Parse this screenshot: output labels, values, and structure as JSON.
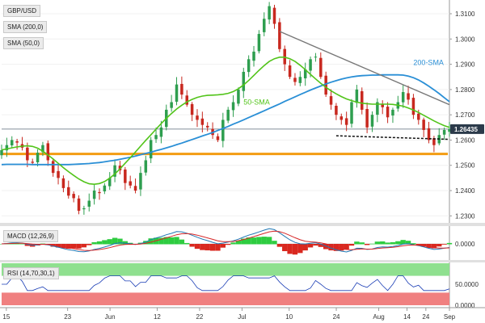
{
  "chart_data": [
    {
      "type": "candlestick",
      "title": "GBP/USD",
      "indicators": [
        "SMA (200,0)",
        "SMA (50,0)"
      ],
      "y_ticks": [
        "1.3100",
        "1.3000",
        "1.2900",
        "1.2800",
        "1.2700",
        "1.2600",
        "1.2500",
        "1.2400",
        "1.2300"
      ],
      "ylim": [
        1.2285,
        1.3148
      ],
      "last_price": "1.26435",
      "annotations": {
        "sma50": "50-SMA",
        "sma200": "200-SMA"
      },
      "closes": [
        1.256,
        1.258,
        1.26,
        1.259,
        1.257,
        1.252,
        1.251,
        1.255,
        1.258,
        1.252,
        1.247,
        1.245,
        1.241,
        1.238,
        1.237,
        1.232,
        1.233,
        1.236,
        1.24,
        1.239,
        1.242,
        1.245,
        1.25,
        1.248,
        1.243,
        1.242,
        1.24,
        1.247,
        1.252,
        1.26,
        1.262,
        1.265,
        1.272,
        1.275,
        1.282,
        1.278,
        1.274,
        1.27,
        1.268,
        1.266,
        1.265,
        1.262,
        1.26,
        1.268,
        1.272,
        1.275,
        1.28,
        1.287,
        1.292,
        1.295,
        1.302,
        1.308,
        1.313,
        1.306,
        1.296,
        1.29,
        1.285,
        1.283,
        1.285,
        1.288,
        1.292,
        1.293,
        1.285,
        1.278,
        1.274,
        1.27,
        1.268,
        1.266,
        1.275,
        1.28,
        1.272,
        1.265,
        1.27,
        1.275,
        1.273,
        1.269,
        1.272,
        1.275,
        1.279,
        1.276,
        1.27,
        1.268,
        1.264,
        1.26,
        1.258,
        1.262,
        1.264,
        1.2644
      ],
      "sma50": [
        1.2561,
        1.2565,
        1.2569,
        1.2573,
        1.2576,
        1.2577,
        1.2575,
        1.2568,
        1.2556,
        1.2541,
        1.2525,
        1.2508,
        1.2491,
        1.2475,
        1.246,
        1.2446,
        1.2435,
        1.2427,
        1.2425,
        1.2428,
        1.2436,
        1.2449,
        1.2466,
        1.2486,
        1.2508,
        1.253,
        1.2553,
        1.2576,
        1.2599,
        1.2621,
        1.2643,
        1.2665,
        1.2686,
        1.2705,
        1.2723,
        1.2738,
        1.2751,
        1.2761,
        1.2769,
        1.2774,
        1.2777,
        1.2778,
        1.2779,
        1.2781,
        1.2785,
        1.2792,
        1.2803,
        1.2818,
        1.2836,
        1.2856,
        1.2876,
        1.2895,
        1.2911,
        1.2922,
        1.2928,
        1.2928,
        1.2922,
        1.2911,
        1.2896,
        1.2879,
        1.286,
        1.2842,
        1.2825,
        1.2809,
        1.2795,
        1.2783,
        1.2772,
        1.2763,
        1.2756,
        1.275,
        1.2746,
        1.2744,
        1.2742,
        1.2742,
        1.2742,
        1.2742,
        1.2741,
        1.2738,
        1.2734,
        1.2727,
        1.2719,
        1.2709,
        1.2698,
        1.2687,
        1.2676,
        1.2666,
        1.2657,
        1.265
      ],
      "sma200": [
        1.2503,
        1.2504,
        1.2504,
        1.2504,
        1.2504,
        1.2504,
        1.2503,
        1.2503,
        1.2503,
        1.2503,
        1.2503,
        1.2503,
        1.2503,
        1.2503,
        1.2504,
        1.2505,
        1.2506,
        1.2507,
        1.2509,
        1.2511,
        1.2514,
        1.2517,
        1.252,
        1.2524,
        1.2528,
        1.2532,
        1.2537,
        1.2542,
        1.2547,
        1.2552,
        1.2558,
        1.2563,
        1.2569,
        1.2575,
        1.2582,
        1.2588,
        1.2595,
        1.2602,
        1.2609,
        1.2616,
        1.2623,
        1.263,
        1.2638,
        1.2646,
        1.2654,
        1.2663,
        1.2671,
        1.268,
        1.2689,
        1.2698,
        1.2707,
        1.2716,
        1.2725,
        1.2734,
        1.2743,
        1.2753,
        1.2762,
        1.2771,
        1.278,
        1.2789,
        1.2798,
        1.2806,
        1.2814,
        1.2822,
        1.2829,
        1.2835,
        1.2841,
        1.2846,
        1.285,
        1.2853,
        1.2855,
        1.2856,
        1.2857,
        1.2857,
        1.2858,
        1.2858,
        1.2858,
        1.2858,
        1.2857,
        1.2853,
        1.2847,
        1.2838,
        1.2826,
        1.2813,
        1.2799,
        1.2784,
        1.2768,
        1.2752
      ],
      "downtrend_line": [
        [
          54,
          1.303
        ],
        [
          87,
          1.274
        ]
      ],
      "support_line": [
        [
          65,
          1.2617
        ],
        [
          87,
          1.2603
        ]
      ],
      "horizontal_support": 1.2545
    },
    {
      "type": "macd",
      "title": "MACD (12,26,9)",
      "y_ticks": [
        "0.0000"
      ],
      "ylim": [
        -0.012,
        0.012
      ]
    },
    {
      "type": "rsi",
      "title": "RSI (14,70,30,1)",
      "y_ticks": [
        "50.0000",
        "0.0000"
      ],
      "ylim": [
        0,
        100
      ],
      "overbought": 70,
      "oversold": 30
    }
  ],
  "x_ticks": [
    "15",
    "23",
    "Jun",
    "12",
    "22",
    "Jul",
    "10",
    "24",
    "Aug",
    "14",
    "24",
    "Sep"
  ],
  "colors": {
    "up": "#2e9e4f",
    "down": "#c8281f",
    "sma50": "#52c41a",
    "sma200": "#2a8fd6",
    "support": "#f39c12",
    "trend": "#777777",
    "rsi_line": "#1a3db5",
    "rsi_upper": "#8fe08f",
    "rsi_lower": "#f08080",
    "macd_line": "#1f77b4",
    "signal_line": "#d62728"
  }
}
